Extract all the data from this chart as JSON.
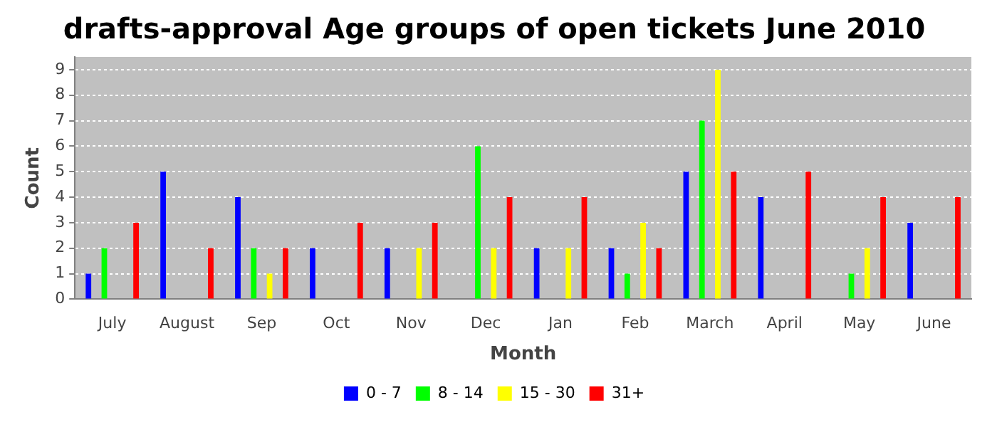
{
  "chart_data": {
    "type": "bar",
    "title": "drafts-approval Age groups of open tickets June 2010",
    "xlabel": "Month",
    "ylabel": "Count",
    "categories": [
      "July",
      "August",
      "Sep",
      "Oct",
      "Nov",
      "Dec",
      "Jan",
      "Feb",
      "March",
      "April",
      "May",
      "June"
    ],
    "series": [
      {
        "name": "0 - 7",
        "color": "#0000ff",
        "values": [
          1,
          5,
          4,
          2,
          2,
          0,
          2,
          2,
          5,
          4,
          0,
          3
        ]
      },
      {
        "name": "8 - 14",
        "color": "#00ff00",
        "values": [
          2,
          0,
          2,
          0,
          0,
          6,
          0,
          1,
          7,
          0,
          1,
          0
        ]
      },
      {
        "name": "15 - 30",
        "color": "#ffff00",
        "values": [
          0,
          0,
          1,
          0,
          2,
          2,
          2,
          3,
          9,
          0,
          2,
          0
        ]
      },
      {
        "name": "31+",
        "color": "#ff0000",
        "values": [
          3,
          2,
          2,
          3,
          3,
          4,
          4,
          2,
          5,
          5,
          4,
          4
        ]
      }
    ],
    "ylim": [
      0,
      9.5
    ],
    "yticks": [
      0,
      1,
      2,
      3,
      4,
      5,
      6,
      7,
      8,
      9
    ],
    "grid": "y",
    "legend": "bottom"
  }
}
